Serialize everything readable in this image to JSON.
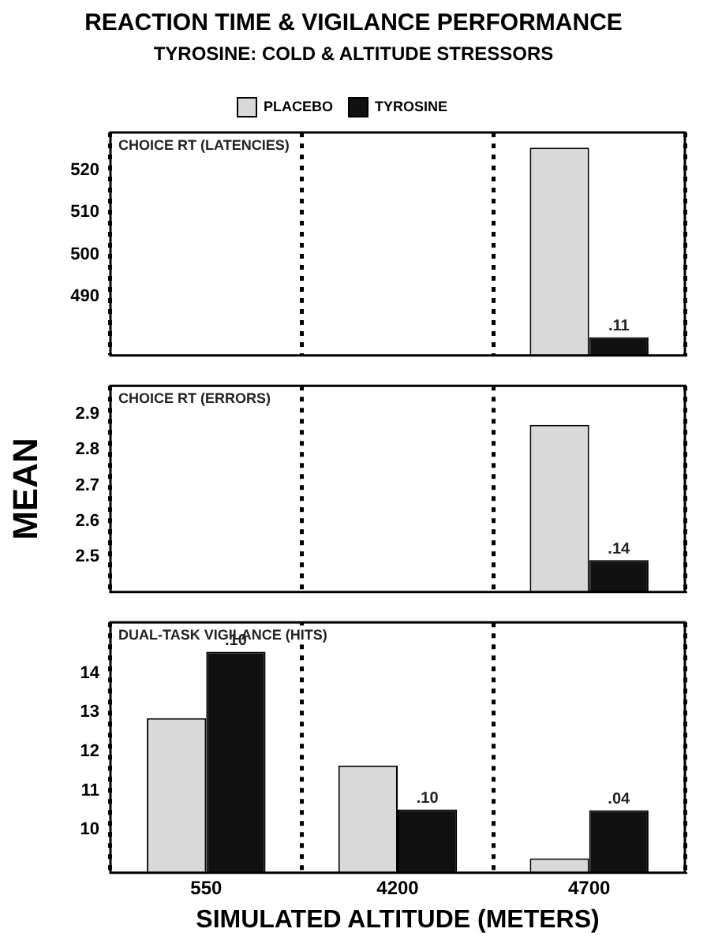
{
  "chart_data": [
    {
      "type": "bar",
      "title": "CHOICE RT (LATENCIES)",
      "annotations": [
        "REACTION TIME & VIGILANCE PERFORMANCE",
        "TYROSINE: COLD & ALTITUDE STRESSORS",
        {
          "text": ".11",
          "x": "4700",
          "y": 480.3
        }
      ],
      "categories": [
        "550",
        "4200",
        "4700"
      ],
      "series": [
        {
          "name": "PLACEBO",
          "color": "#d9d9d9",
          "values": [
            null,
            null,
            525.4
          ]
        },
        {
          "name": "TYROSINE",
          "color": "#111111",
          "values": [
            null,
            null,
            480.3
          ]
        }
      ],
      "ylim": [
        476,
        529
      ],
      "yticks": [
        490,
        500,
        510,
        520
      ],
      "grid": "x",
      "legend": "top",
      "tick_labels": "y"
    },
    {
      "type": "bar",
      "title": "CHOICE RT (ERRORS)",
      "ylabel": "MEAN",
      "annotations": [
        {
          "text": ".14",
          "x": "4700",
          "y": 2.49
        }
      ],
      "categories": [
        "550",
        "4200",
        "4700"
      ],
      "series": [
        {
          "color": "#d9d9d9",
          "values": [
            null,
            null,
            2.87
          ]
        },
        {
          "color": "#111111",
          "values": [
            null,
            null,
            2.49
          ]
        }
      ],
      "ylim": [
        2.4,
        2.98
      ],
      "yticks": [
        2.5,
        2.6,
        2.7,
        2.8,
        2.9
      ],
      "grid": "x",
      "tick_labels": "y"
    },
    {
      "type": "bar",
      "title": "DUAL-TASK VIGILANCE (HITS)",
      "xlabel": "SIMULATED ALTITUDE (METERS)",
      "annotations": [
        {
          "text": ".10",
          "x": "550",
          "y": 14.55
        },
        {
          "text": ".10",
          "x": "4200",
          "y": 10.52
        },
        {
          "text": ".04",
          "x": "4700",
          "y": 10.5
        }
      ],
      "categories": [
        "550",
        "4200",
        "4700"
      ],
      "series": [
        {
          "color": "#d9d9d9",
          "values": [
            12.85,
            11.64,
            9.27
          ]
        },
        {
          "color": "#111111",
          "values": [
            14.55,
            10.52,
            10.5
          ]
        }
      ],
      "ylim": [
        8.9,
        15.3
      ],
      "yticks": [
        10,
        11,
        12,
        13,
        14
      ],
      "grid": "x"
    }
  ]
}
